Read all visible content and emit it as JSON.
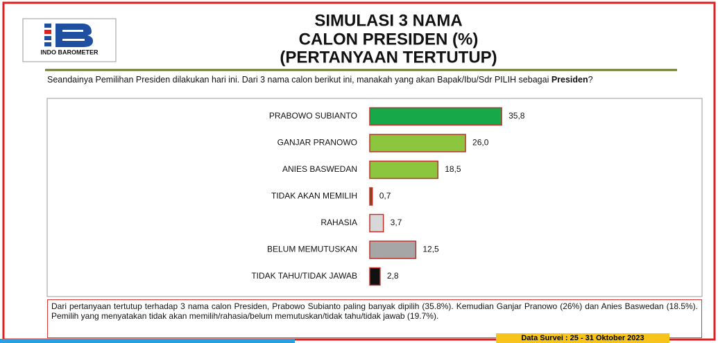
{
  "logo": "INDO BAROMETER",
  "question": [
    {
      "text": "Seandainya Pemilihan Presiden dilakukan hari ini. Dari 3 nama calon berikut ini, manakah yang akan Bapak/Ibu/Sdr PILIH sebagai ",
      "bold": false
    },
    {
      "text": "Presiden",
      "bold": true
    },
    {
      "text": "?",
      "bold": false
    }
  ],
  "note": "Dari pertanyaan tertutup terhadap 3 nama calon Presiden, Prabowo Subianto paling banyak dipilih (35.8%). Kemudian Ganjar Pranowo (26%) dan Anies Baswedan (18.5%). Pemilih yang menyatakan tidak akan memilih/rahasia/belum memutuskan/tidak tahu/tidak jawab (19.7%).",
  "survey_date": "Data Survei : 25 - 31 Oktober 2023",
  "chart_data": {
    "type": "hbar",
    "title": [
      "SIMULASI 3 NAMA",
      "CALON PRESIDEN (%)",
      "(PERTANYAAN TERTUTUP)"
    ],
    "categories": [
      "PRABOWO SUBIANTO",
      "GANJAR PRANOWO",
      "ANIES BASWEDAN",
      "TIDAK AKAN MEMILIH",
      "RAHASIA",
      "BELUM MEMUTUSKAN",
      "TIDAK TAHU/TIDAK JAWAB"
    ],
    "values": [
      35.8,
      26.0,
      18.5,
      0.7,
      3.7,
      12.5,
      2.8
    ],
    "value_labels": [
      "35,8",
      "26,0",
      "18,5",
      "0,7",
      "3,7",
      "12,5",
      "2,8"
    ],
    "colors": [
      "#17a84a",
      "#8cc63f",
      "#8cc63f",
      "#7a4a1a",
      "#d8d8d8",
      "#a6a6a6",
      "#111111"
    ],
    "bar_border": "#c0302a"
  }
}
